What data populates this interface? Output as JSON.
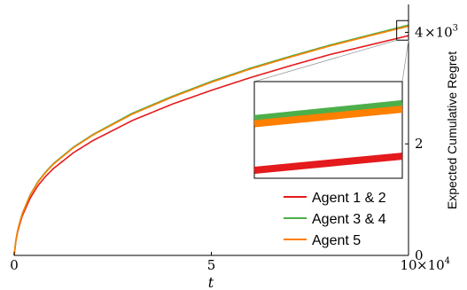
{
  "chart_data": {
    "type": "line",
    "xlabel": "t",
    "ylabel": "Expected Cumulative Regret",
    "xlim": [
      0,
      100000
    ],
    "ylim": [
      0,
      4500
    ],
    "x_ticks": [
      {
        "value": 0,
        "label": "0"
      },
      {
        "value": 50000,
        "label": "5"
      },
      {
        "value": 100000,
        "label": "10"
      }
    ],
    "x_multiplier": {
      "base": "×10",
      "exp": "4"
    },
    "y_ticks": [
      {
        "value": 0,
        "label": "0"
      },
      {
        "value": 2000,
        "label": "2"
      },
      {
        "value": 4000,
        "label": "4"
      }
    ],
    "y_multiplier": {
      "base": "×10",
      "exp": "3"
    },
    "grid": false,
    "legend_position": "bottom-right",
    "series": [
      {
        "name": "Agent 1 & 2",
        "color": "#e41a1c",
        "x": [
          0,
          500,
          1000,
          2000,
          4000,
          6000,
          8000,
          10000,
          15000,
          20000,
          30000,
          40000,
          50000,
          60000,
          70000,
          80000,
          90000,
          100000
        ],
        "y": [
          0,
          300,
          460,
          700,
          1020,
          1250,
          1420,
          1560,
          1840,
          2060,
          2420,
          2710,
          2960,
          3190,
          3400,
          3600,
          3770,
          3940
        ]
      },
      {
        "name": "Agent 3 & 4",
        "color": "#4daf4a",
        "x": [
          0,
          500,
          1000,
          2000,
          4000,
          6000,
          8000,
          10000,
          15000,
          20000,
          30000,
          40000,
          50000,
          60000,
          70000,
          80000,
          90000,
          100000
        ],
        "y": [
          0,
          320,
          490,
          740,
          1080,
          1320,
          1500,
          1650,
          1940,
          2170,
          2550,
          2850,
          3120,
          3360,
          3570,
          3770,
          3950,
          4130
        ]
      },
      {
        "name": "Agent 5",
        "color": "#ff7f00",
        "x": [
          0,
          500,
          1000,
          2000,
          4000,
          6000,
          8000,
          10000,
          15000,
          20000,
          30000,
          40000,
          50000,
          60000,
          70000,
          80000,
          90000,
          100000
        ],
        "y": [
          0,
          315,
          485,
          735,
          1070,
          1310,
          1490,
          1640,
          1930,
          2160,
          2535,
          2835,
          3105,
          3345,
          3555,
          3755,
          3935,
          4110
        ]
      }
    ],
    "inset": {
      "xlim": [
        97000,
        100000
      ],
      "ylim": [
        3860,
        4210
      ]
    }
  }
}
